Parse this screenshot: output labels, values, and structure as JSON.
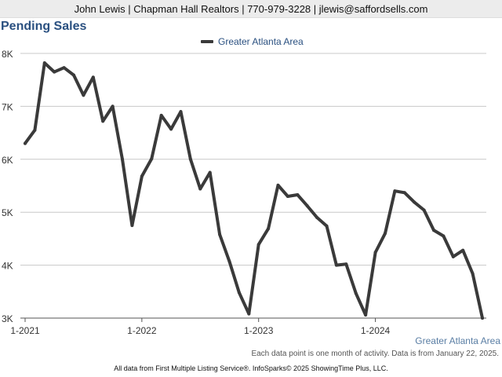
{
  "header": {
    "contact": "John Lewis | Chapman Hall Realtors | 770-979-3228 | jlewis@saffordsells.com"
  },
  "region_label": "Greater Atlanta Area",
  "note": "Each data point is one month of activity. Data is from January 22, 2025.",
  "footer": "All data from First Multiple Listing Service®. InfoSparks© 2025 ShowingTime Plus, LLC.",
  "colors": {
    "line": "#3a3a3a",
    "title": "#2a5080",
    "grid": "#c8c8c8"
  },
  "chart_data": {
    "type": "line",
    "title": "Pending Sales",
    "xlabel": "",
    "ylabel": "",
    "ylim": [
      3000,
      8000
    ],
    "yticks": [
      {
        "value": 3000,
        "label": "3K"
      },
      {
        "value": 4000,
        "label": "4K"
      },
      {
        "value": 5000,
        "label": "5K"
      },
      {
        "value": 6000,
        "label": "6K"
      },
      {
        "value": 7000,
        "label": "7K"
      },
      {
        "value": 8000,
        "label": "8K"
      }
    ],
    "xticks": [
      {
        "month_index": 0,
        "label": "1-2021"
      },
      {
        "month_index": 12,
        "label": "1-2022"
      },
      {
        "month_index": 24,
        "label": "1-2023"
      },
      {
        "month_index": 36,
        "label": "1-2024"
      }
    ],
    "legend": "top-center",
    "grid": true,
    "series": [
      {
        "name": "Greater Atlanta Area",
        "x": [
          "2021-01",
          "2021-02",
          "2021-03",
          "2021-04",
          "2021-05",
          "2021-06",
          "2021-07",
          "2021-08",
          "2021-09",
          "2021-10",
          "2021-11",
          "2021-12",
          "2022-01",
          "2022-02",
          "2022-03",
          "2022-04",
          "2022-05",
          "2022-06",
          "2022-07",
          "2022-08",
          "2022-09",
          "2022-10",
          "2022-11",
          "2022-12",
          "2023-01",
          "2023-02",
          "2023-03",
          "2023-04",
          "2023-05",
          "2023-06",
          "2023-07",
          "2023-08",
          "2023-09",
          "2023-10",
          "2023-11",
          "2023-12",
          "2024-01",
          "2024-02",
          "2024-03",
          "2024-04",
          "2024-05",
          "2024-06",
          "2024-07",
          "2024-08",
          "2024-09",
          "2024-10",
          "2024-11",
          "2024-12"
        ],
        "values": [
          6300,
          6550,
          7820,
          7650,
          7730,
          7590,
          7210,
          7550,
          6720,
          7000,
          6000,
          4750,
          5680,
          6010,
          6830,
          6570,
          6900,
          6000,
          5440,
          5750,
          4580,
          4070,
          3480,
          3080,
          4390,
          4690,
          5510,
          5300,
          5330,
          5120,
          4900,
          4740,
          4000,
          4020,
          3470,
          3060,
          4240,
          4600,
          5400,
          5370,
          5190,
          5040,
          4660,
          4550,
          4160,
          4280,
          3840,
          3000
        ]
      }
    ]
  }
}
